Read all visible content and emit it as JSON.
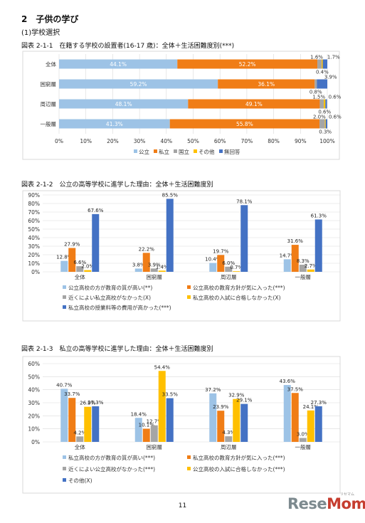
{
  "section_title": "2　子供の学び",
  "subsection_title": "(1)学校選択",
  "page_number": "11",
  "logo": {
    "text_a": "Rese",
    "text_b": "Mom",
    "sub": "リセマム"
  },
  "colors": {
    "public": "#9dc3e6",
    "private": "#f07d16",
    "national": "#a5a5a5",
    "other": "#ffc000",
    "noans": "#4472c4"
  },
  "chart_data": [
    {
      "type": "bar",
      "orientation": "horizontal-stacked-100",
      "title": "図表 2-1-1　在籍する学校の設置者(16-17 歳)：全体＋生活困難度別(***)",
      "categories": [
        "全体",
        "困窮層",
        "周辺層",
        "一般層"
      ],
      "series": [
        {
          "name": "公立",
          "color": "#9dc3e6",
          "values": [
            44.1,
            59.2,
            48.1,
            41.3
          ]
        },
        {
          "name": "私立",
          "color": "#f07d16",
          "values": [
            52.2,
            36.1,
            49.1,
            55.8
          ]
        },
        {
          "name": "国立",
          "color": "#a5a5a5",
          "values": [
            1.6,
            0.8,
            1.5,
            2.0
          ]
        },
        {
          "name": "その他",
          "color": "#ffc000",
          "values": [
            0.4,
            0.0,
            0.6,
            0.3
          ]
        },
        {
          "name": "無回答",
          "color": "#4472c4",
          "values": [
            1.7,
            3.9,
            0.6,
            0.6
          ]
        }
      ],
      "value_labels": [
        {
          "cat": 0,
          "series": 2,
          "text": "1.6%",
          "pos": "above"
        },
        {
          "cat": 0,
          "series": 4,
          "text": "1.7%",
          "pos": "above-right"
        },
        {
          "cat": 0,
          "series": 3,
          "text": "0.4%",
          "pos": "below"
        },
        {
          "cat": 1,
          "series": 4,
          "text": "3.9%",
          "pos": "above-right"
        },
        {
          "cat": 1,
          "series": 2,
          "text": "0.8%",
          "pos": "below"
        },
        {
          "cat": 2,
          "series": 2,
          "text": "1.5%",
          "pos": "above"
        },
        {
          "cat": 2,
          "series": 4,
          "text": "0.6%",
          "pos": "above-right"
        },
        {
          "cat": 2,
          "series": 3,
          "text": "0.6%",
          "pos": "below"
        },
        {
          "cat": 3,
          "series": 2,
          "text": "2.0%",
          "pos": "above"
        },
        {
          "cat": 3,
          "series": 4,
          "text": "0.6%",
          "pos": "above-right"
        },
        {
          "cat": 3,
          "series": 3,
          "text": "0.3%",
          "pos": "below"
        }
      ],
      "xlim": [
        0,
        100
      ],
      "xticks": [
        "0%",
        "10%",
        "20%",
        "30%",
        "40%",
        "50%",
        "60%",
        "70%",
        "80%",
        "90%",
        "100%"
      ],
      "legend": [
        "公立",
        "私立",
        "国立",
        "その他",
        "無回答"
      ],
      "legend_position": "bottom",
      "grid": true
    },
    {
      "type": "bar",
      "title": "図表 2-1-2　公立の高等学校に進学した理由：全体＋生活困難度別",
      "categories": [
        "全体",
        "困窮層",
        "周辺層",
        "一般層"
      ],
      "series": [
        {
          "name": "公立高校の方が教育の質が高い(**)",
          "color": "#9dc3e6",
          "values": [
            12.8,
            3.8,
            10.4,
            14.7
          ]
        },
        {
          "name": "公立高校の教育方針が気に入った(***)",
          "color": "#f07d16",
          "values": [
            27.9,
            22.2,
            19.7,
            31.6
          ]
        },
        {
          "name": "近くによい私立高校がなかった(X)",
          "color": "#a5a5a5",
          "values": [
            6.6,
            3.9,
            6.0,
            8.3
          ]
        },
        {
          "name": "私立高校の入試に合格しなかった(X)",
          "color": "#ffc000",
          "values": [
            2.0,
            1.4,
            0.7,
            2.7
          ]
        },
        {
          "name": "私立高校の授業料等の費用が高かった(***)",
          "color": "#4472c4",
          "values": [
            67.6,
            85.5,
            78.1,
            61.3
          ]
        }
      ],
      "ylim": [
        0,
        90
      ],
      "yticks": [
        "0%",
        "10%",
        "20%",
        "30%",
        "40%",
        "50%",
        "60%",
        "70%",
        "80%",
        "90%"
      ],
      "legend_position": "bottom",
      "grid": true
    },
    {
      "type": "bar",
      "title": "図表 2-1-3　私立の高等学校に進学した理由：全体＋生活困難度別",
      "categories": [
        "全体",
        "困窮層",
        "周辺層",
        "一般層"
      ],
      "series": [
        {
          "name": "私立高校の方が教育の質が高い(***)",
          "color": "#9dc3e6",
          "values": [
            40.7,
            18.4,
            37.2,
            43.6
          ]
        },
        {
          "name": "私立高校の教育方針が気に入った(***)",
          "color": "#f07d16",
          "values": [
            33.7,
            10.1,
            23.9,
            37.5
          ]
        },
        {
          "name": "近くによい公立高校がなかった(***)",
          "color": "#a5a5a5",
          "values": [
            4.2,
            12.7,
            4.3,
            3.0
          ]
        },
        {
          "name": "公立高校の入試に合格しなかった(***)",
          "color": "#ffc000",
          "values": [
            26.9,
            54.4,
            32.9,
            24.1
          ]
        },
        {
          "name": "その他(X)",
          "color": "#4472c4",
          "values": [
            27.3,
            33.5,
            29.1,
            27.3
          ]
        }
      ],
      "ylim": [
        0,
        60
      ],
      "yticks": [
        "0%",
        "10%",
        "20%",
        "30%",
        "40%",
        "50%",
        "60%"
      ],
      "legend_position": "bottom",
      "grid": true
    }
  ]
}
